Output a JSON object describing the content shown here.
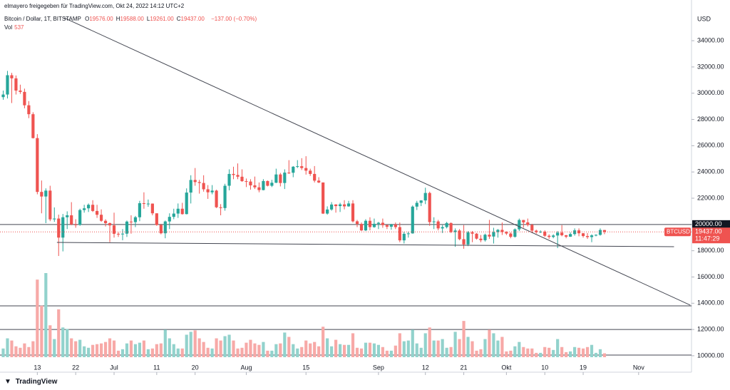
{
  "header": {
    "attribution": "elmayero freigegeben für TradingView.com, Okt 24, 2022 14:12 UTC+2",
    "footer": "TradingView"
  },
  "legend": {
    "symbol": "Bitcoin / Dollar, 1T, BITSTAMP",
    "items": [
      {
        "key": "O",
        "value": "19576.00"
      },
      {
        "key": "H",
        "value": "19588.00"
      },
      {
        "key": "L",
        "value": "19261.00"
      },
      {
        "key": "C",
        "value": "19437.00"
      }
    ],
    "change": "−137.00 (−0.70%)",
    "volume": {
      "key": "Vol",
      "value": "537"
    }
  },
  "chart_data": {
    "type": "candlestick",
    "y_axis_label": "USD",
    "xlim": [
      -0.75,
      161.4
    ],
    "ylim": [
      9400,
      37100
    ],
    "xticks": [
      {
        "value": 8,
        "label": "13"
      },
      {
        "value": 17,
        "label": "22"
      },
      {
        "value": 26,
        "label": "Jul"
      },
      {
        "value": 36,
        "label": "11"
      },
      {
        "value": 45,
        "label": "20"
      },
      {
        "value": 57,
        "label": "Aug"
      },
      {
        "value": 71,
        "label": "15"
      },
      {
        "value": 88,
        "label": "Sep"
      },
      {
        "value": 99,
        "label": "12"
      },
      {
        "value": 108,
        "label": "21"
      },
      {
        "value": 118,
        "label": "Okt"
      },
      {
        "value": 127,
        "label": "10"
      },
      {
        "value": 136,
        "label": "19"
      },
      {
        "value": 149,
        "label": "Nov"
      }
    ],
    "yticks": [
      {
        "value": 10000,
        "label": "10000.00"
      },
      {
        "value": 12000,
        "label": "12000.00"
      },
      {
        "value": 14000,
        "label": "14000.00"
      },
      {
        "value": 16000,
        "label": "16000.00"
      },
      {
        "value": 18000,
        "label": "18000.00"
      },
      {
        "value": 20000,
        "label": "20000.00"
      },
      {
        "value": 22000,
        "label": "22000.00"
      },
      {
        "value": 24000,
        "label": "24000.00"
      },
      {
        "value": 26000,
        "label": "26000.00"
      },
      {
        "value": 28000,
        "label": "28000.00"
      },
      {
        "value": 30000,
        "label": "30000.00"
      },
      {
        "value": 32000,
        "label": "32000.00"
      },
      {
        "value": 34000,
        "label": "34000.00"
      }
    ],
    "up_color": "#26a69a",
    "down_color": "#ef5350",
    "up_volume_color": "#92d2cc",
    "down_volume_color": "#f7a9a7",
    "series": [
      {
        "name": "BTCUSD",
        "last_label": "19437.00",
        "countdown": "11:47:29",
        "open": [
          29700,
          29900,
          31370,
          31130,
          30200,
          30100,
          29080,
          28400,
          26580,
          22480,
          22130,
          22580,
          20390,
          20450,
          19000,
          20550,
          20700,
          20000,
          19970,
          21100,
          21230,
          21500,
          21030,
          20740,
          20280,
          20100,
          19930,
          19290,
          19250,
          19300,
          20220,
          20180,
          20550,
          21620,
          21580,
          21590,
          20850,
          19960,
          19330,
          20230,
          20580,
          20830,
          21200,
          20790,
          22430,
          23390,
          23230,
          23160,
          22680,
          22450,
          22580,
          21310,
          21250,
          22950,
          23850,
          23770,
          23640,
          23300,
          23270,
          22980,
          22830,
          22620,
          23310,
          22950,
          23180,
          23810,
          23160,
          23950,
          23940,
          24400,
          24440,
          24300,
          24100,
          23850,
          23340,
          23200,
          20830,
          21140,
          21520,
          21400,
          21530,
          21380,
          21600,
          20240,
          20040,
          19550,
          20280,
          19800,
          20050,
          20130,
          19950,
          19830,
          20000,
          19800,
          18790,
          19290,
          19320,
          21360,
          21650,
          21830,
          22400,
          20180,
          20230,
          19700,
          19800,
          20110,
          19420,
          19540,
          18880,
          18480,
          19400,
          19300,
          18920,
          18800,
          19220,
          19080,
          19420,
          19590,
          19430,
          19310,
          19060,
          19630,
          20340,
          20160,
          19960,
          19530,
          19420,
          19450,
          19140,
          19050,
          19160,
          19380,
          19180,
          19070,
          19270,
          19550,
          19330,
          19120,
          19040,
          19170,
          19210,
          19576
        ],
        "high": [
          30200,
          31700,
          31550,
          31350,
          30650,
          30350,
          29400,
          28550,
          26880,
          23350,
          22750,
          22950,
          21300,
          20750,
          20800,
          21000,
          21700,
          20400,
          21200,
          21500,
          21600,
          21850,
          21500,
          21150,
          20400,
          20150,
          20900,
          19400,
          19650,
          20300,
          20700,
          20650,
          21800,
          22450,
          21900,
          21600,
          20850,
          20050,
          20300,
          20850,
          21200,
          21600,
          21650,
          22750,
          23750,
          24300,
          23400,
          23750,
          23000,
          23000,
          22650,
          21550,
          23100,
          24200,
          24400,
          24650,
          24200,
          23500,
          23450,
          23650,
          23200,
          23450,
          23350,
          23400,
          24250,
          23930,
          24200,
          24900,
          24450,
          24900,
          25050,
          25200,
          24250,
          24450,
          23600,
          23200,
          21380,
          21700,
          21550,
          21650,
          21850,
          21800,
          21850,
          20350,
          20150,
          20400,
          20550,
          20450,
          20200,
          20450,
          20000,
          20050,
          20150,
          20150,
          19450,
          19450,
          21450,
          21800,
          21850,
          22800,
          22500,
          20550,
          20350,
          19950,
          20200,
          20150,
          19700,
          19650,
          19950,
          19500,
          19500,
          19350,
          19200,
          19300,
          20350,
          19750,
          19650,
          20150,
          19480,
          19400,
          19700,
          20450,
          20350,
          20450,
          20050,
          19600,
          19550,
          19550,
          19250,
          19250,
          19500,
          19950,
          19200,
          19400,
          19700,
          19700,
          19350,
          19350,
          19250,
          19250,
          19700,
          19588
        ],
        "low": [
          29500,
          29600,
          29250,
          29900,
          29950,
          28850,
          28100,
          26550,
          22300,
          20850,
          20100,
          20250,
          20200,
          17600,
          17950,
          19650,
          19950,
          19750,
          19900,
          20900,
          20950,
          20950,
          20500,
          20200,
          19850,
          18650,
          19000,
          19050,
          18800,
          19050,
          19300,
          19800,
          20250,
          21200,
          21350,
          20700,
          19900,
          19250,
          18950,
          19650,
          20400,
          20500,
          20750,
          20770,
          21600,
          22950,
          22350,
          22500,
          21950,
          22300,
          21250,
          20700,
          21050,
          22600,
          23450,
          23450,
          23250,
          22850,
          22650,
          22700,
          22450,
          22600,
          22900,
          22850,
          23150,
          22900,
          22700,
          23850,
          23600,
          24300,
          24150,
          23800,
          23700,
          23200,
          23150,
          20800,
          20750,
          21050,
          20900,
          20950,
          21150,
          21350,
          20150,
          19800,
          19500,
          19500,
          19550,
          19750,
          19650,
          19750,
          19650,
          19600,
          19650,
          18650,
          18550,
          19000,
          19300,
          21100,
          21400,
          21550,
          19900,
          19650,
          19550,
          19350,
          19700,
          19350,
          18300,
          18800,
          18150,
          18350,
          18650,
          18850,
          18650,
          18700,
          18900,
          18550,
          19000,
          19200,
          19200,
          18950,
          19000,
          19500,
          19750,
          19850,
          19350,
          19300,
          19350,
          19050,
          18900,
          18950,
          18200,
          19100,
          18950,
          19050,
          19150,
          19100,
          19000,
          18900,
          18650,
          19100,
          19150,
          19261
        ],
        "close": [
          29900,
          31370,
          31130,
          30200,
          30100,
          29080,
          28400,
          26580,
          22480,
          22130,
          22580,
          20390,
          20450,
          19000,
          20550,
          20700,
          20000,
          19970,
          21100,
          21230,
          21500,
          21030,
          20740,
          20280,
          20100,
          19930,
          19290,
          19250,
          19300,
          20220,
          20180,
          20550,
          21620,
          21580,
          21590,
          20850,
          19960,
          19330,
          20230,
          20580,
          20830,
          21200,
          20790,
          22430,
          23390,
          23230,
          23160,
          22680,
          22450,
          22580,
          21310,
          21250,
          22950,
          23850,
          23770,
          23640,
          23300,
          23270,
          22980,
          22830,
          22620,
          23310,
          22950,
          23180,
          23810,
          23160,
          23950,
          23940,
          24400,
          24440,
          24300,
          24100,
          23850,
          23340,
          23200,
          20830,
          21140,
          21520,
          21400,
          21530,
          21380,
          21600,
          20240,
          20040,
          19550,
          20280,
          19800,
          20050,
          20130,
          19950,
          19830,
          20000,
          19800,
          18790,
          19290,
          19320,
          21360,
          21650,
          21830,
          22400,
          20180,
          20230,
          19700,
          19800,
          20110,
          19420,
          19540,
          18880,
          18480,
          19400,
          19300,
          18920,
          18800,
          19220,
          19080,
          19420,
          19590,
          19430,
          19310,
          19060,
          19630,
          20340,
          20160,
          19960,
          19530,
          19420,
          19450,
          19140,
          19050,
          19160,
          19380,
          19180,
          19070,
          19270,
          19550,
          19330,
          19120,
          19040,
          19170,
          19210,
          19576,
          19437
        ],
        "volume": [
          1200,
          2600,
          2300,
          1500,
          1300,
          1900,
          1400,
          2200,
          10700,
          7100,
          11600,
          4400,
          2500,
          6600,
          4100,
          3900,
          2600,
          2200,
          2400,
          1500,
          1300,
          1700,
          1800,
          1900,
          2100,
          2600,
          2300,
          900,
          1100,
          1900,
          2300,
          1800,
          2000,
          2300,
          1100,
          1200,
          1800,
          1900,
          3800,
          2600,
          1800,
          1200,
          1200,
          3100,
          3500,
          3700,
          2600,
          2100,
          1300,
          1200,
          2600,
          2300,
          2900,
          3100,
          2300,
          1200,
          1300,
          2000,
          2400,
          1900,
          1700,
          2100,
          900,
          900,
          1800,
          1900,
          3400,
          2800,
          1800,
          1200,
          1400,
          2300,
          1900,
          2100,
          1500,
          4200,
          2600,
          1500,
          2400,
          1800,
          1700,
          1700,
          3300,
          1300,
          1200,
          2000,
          2000,
          1900,
          1700,
          1400,
          900,
          900,
          1600,
          3300,
          2200,
          2300,
          3800,
          1900,
          1300,
          3300,
          4100,
          2300,
          2300,
          2500,
          1300,
          1400,
          3500,
          2500,
          5000,
          2800,
          2200,
          900,
          1100,
          2500,
          3800,
          3300,
          2300,
          2800,
          800,
          900,
          1500,
          2100,
          1400,
          1200,
          1200,
          600,
          600,
          1400,
          1300,
          1000,
          2500,
          1400,
          700,
          800,
          1400,
          1300,
          1200,
          1400,
          1700,
          600,
          1100,
          537
        ]
      }
    ],
    "hlines": [
      {
        "value": 20000,
        "label": "20000.00"
      },
      13800,
      12000,
      10050
    ],
    "trendlines": [
      {
        "x": [
          14.3,
          161.1
        ],
        "y": [
          35740,
          13855
        ]
      },
      {
        "x": [
          12.6,
          157.3
        ],
        "y": [
          18633,
          18307
        ]
      }
    ]
  }
}
